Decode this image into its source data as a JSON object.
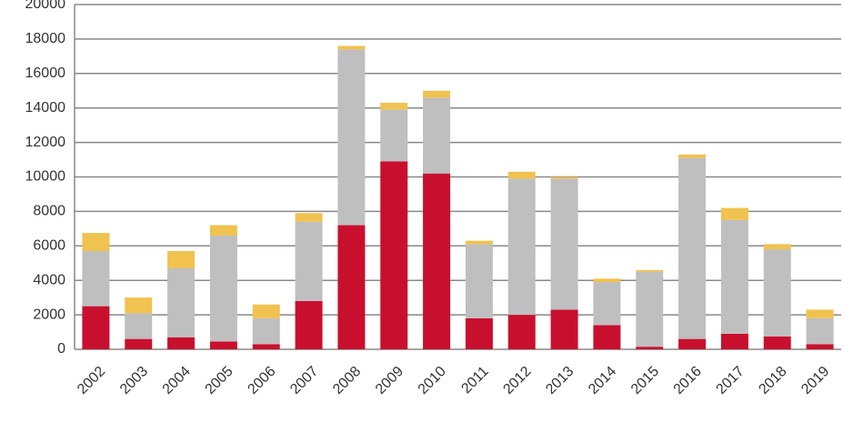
{
  "chart_data": {
    "type": "stacked_bar",
    "categories": [
      "2002",
      "2003",
      "2004",
      "2005",
      "2006",
      "2007",
      "2008",
      "2009",
      "2010",
      "2011",
      "2012",
      "2013",
      "2014",
      "2015",
      "2016",
      "2017",
      "2018",
      "2019"
    ],
    "series": [
      {
        "color": "#c8102e",
        "values": [
          2500,
          600,
          700,
          450,
          300,
          2800,
          7200,
          10900,
          10200,
          1800,
          2000,
          2300,
          1400,
          150,
          600,
          900,
          750,
          300
        ]
      },
      {
        "color": "#bfbfbf",
        "values": [
          3200,
          1500,
          4000,
          6150,
          1500,
          4600,
          10200,
          3000,
          4400,
          4300,
          7900,
          7600,
          2500,
          4350,
          10500,
          6600,
          5050,
          1500
        ]
      },
      {
        "color": "#f0c24f",
        "values": [
          1050,
          900,
          1000,
          600,
          800,
          500,
          200,
          400,
          400,
          200,
          400,
          100,
          200,
          100,
          200,
          700,
          300,
          500
        ]
      }
    ],
    "ylim": [
      0,
      20000
    ],
    "yticks": [
      0,
      2000,
      4000,
      6000,
      8000,
      10000,
      12000,
      14000,
      16000,
      18000,
      20000
    ],
    "grid": true
  }
}
